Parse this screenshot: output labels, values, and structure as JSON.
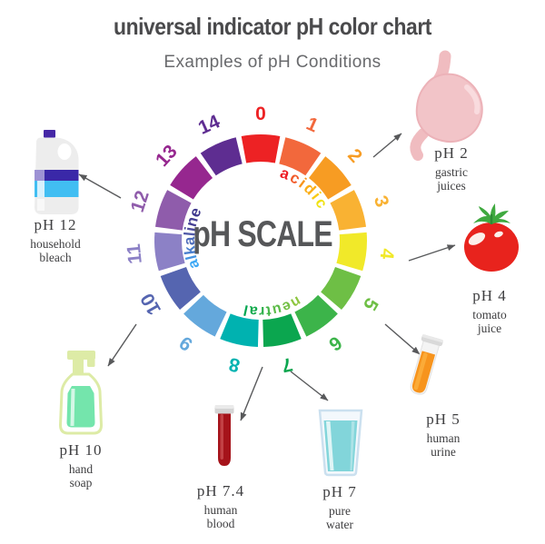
{
  "title": "universal indicator pH color chart",
  "subtitle": "Examples of pH Conditions",
  "center_label": "pH SCALE",
  "colors": {
    "title_text": "#4a4a4c",
    "subtitle_text": "#696a6d",
    "center_text": "#565759",
    "label_text": "#3e3e40",
    "arrow": "#58595b"
  },
  "wheel": {
    "segments": [
      {
        "ph": "0",
        "color": "#ED2224"
      },
      {
        "ph": "1",
        "color": "#F2683C"
      },
      {
        "ph": "2",
        "color": "#F79C23"
      },
      {
        "ph": "3",
        "color": "#F9B233"
      },
      {
        "ph": "4",
        "color": "#F1E929"
      },
      {
        "ph": "5",
        "color": "#6EBF45"
      },
      {
        "ph": "6",
        "color": "#3CB44A"
      },
      {
        "ph": "7",
        "color": "#0BA64F"
      },
      {
        "ph": "8",
        "color": "#00B2B0"
      },
      {
        "ph": "9",
        "color": "#64A8DC"
      },
      {
        "ph": "10",
        "color": "#5565B0"
      },
      {
        "ph": "11",
        "color": "#8C81C6"
      },
      {
        "ph": "12",
        "color": "#8F5CAB"
      },
      {
        "ph": "13",
        "color": "#96278F"
      },
      {
        "ph": "14",
        "color": "#5E2D91"
      }
    ],
    "zone_words": [
      {
        "word": "acidic",
        "start_angle": 16,
        "letter_colors": [
          "#ED1C24",
          "#F15A29",
          "#F7941D",
          "#FBAE17",
          "#F9CB15",
          "#F0E214"
        ]
      },
      {
        "word": "neutral",
        "start_angle": 146,
        "letter_colors": [
          "#8DC63F",
          "#72BF44",
          "#5BBB47",
          "#45B649",
          "#2FB14C",
          "#16AB4F",
          "#00A651"
        ]
      },
      {
        "word": "alkaline",
        "start_angle": 246.5,
        "letter_colors": [
          "#3FA9F5",
          "#4493E2",
          "#4A7FCE",
          "#4E6CBB",
          "#5059A8",
          "#4C4A9C",
          "#453F94",
          "#3F388E"
        ]
      }
    ]
  },
  "examples": [
    {
      "ph": "pH 2",
      "name_lines": [
        "gastric",
        "juices"
      ],
      "icon": "stomach-icon"
    },
    {
      "ph": "pH 4",
      "name_lines": [
        "tomato",
        "juice"
      ],
      "icon": "tomato-icon"
    },
    {
      "ph": "pH 5",
      "name_lines": [
        "human",
        "urine"
      ],
      "icon": "test-tube-urine-icon"
    },
    {
      "ph": "pH 7",
      "name_lines": [
        "pure",
        "water"
      ],
      "icon": "water-glass-icon"
    },
    {
      "ph": "pH 7.4",
      "name_lines": [
        "human",
        "blood"
      ],
      "icon": "test-tube-blood-icon"
    },
    {
      "ph": "pH 10",
      "name_lines": [
        "hand",
        "soap"
      ],
      "icon": "soap-dispenser-icon"
    },
    {
      "ph": "pH 12",
      "name_lines": [
        "household",
        "bleach"
      ],
      "icon": "bleach-bottle-icon"
    }
  ]
}
